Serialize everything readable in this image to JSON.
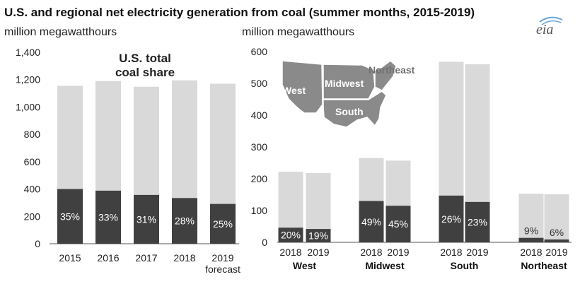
{
  "title": "U.S. and regional net electricity generation from coal (summer months, 2015-2019)",
  "logo_text": "eia",
  "colors": {
    "total": "#d9d9d9",
    "coal": "#404040",
    "map": "#8a8a8a",
    "map_edge": "#ffffff"
  },
  "map_labels": [
    "West",
    "Midwest",
    "South",
    "Northeast"
  ],
  "chart_data": [
    {
      "type": "bar",
      "ylabel": "million megawatthours",
      "ylim": [
        0,
        1400
      ],
      "yticks": [
        "0",
        "200",
        "400",
        "600",
        "800",
        "1,000",
        "1,200",
        "1,400"
      ],
      "ytick_values": [
        0,
        200,
        400,
        600,
        800,
        1000,
        1200,
        1400
      ],
      "annotation": [
        "U.S. total",
        "coal share"
      ],
      "categories": [
        "2015",
        "2016",
        "2017",
        "2018",
        "2019"
      ],
      "category_sublabels": [
        "",
        "",
        "",
        "",
        "forecast"
      ],
      "series": [
        {
          "values": [
            1155,
            1190,
            1148,
            1195,
            1170
          ]
        },
        {
          "values": [
            400,
            388,
            357,
            334,
            291
          ]
        }
      ],
      "bar_labels": [
        "35%",
        "33%",
        "31%",
        "28%",
        "25%"
      ]
    },
    {
      "type": "bar",
      "ylabel": "million megawatthours",
      "ylim": [
        0,
        600
      ],
      "yticks": [
        "0",
        "100",
        "200",
        "300",
        "400",
        "500",
        "600"
      ],
      "ytick_values": [
        0,
        100,
        200,
        300,
        400,
        500,
        600
      ],
      "groups": [
        {
          "name": "West",
          "categories": [
            "2018",
            "2019"
          ],
          "totals": [
            222,
            218
          ],
          "coal": [
            46,
            42
          ],
          "bar_labels": [
            "20%",
            "19%"
          ]
        },
        {
          "name": "Midwest",
          "categories": [
            "2018",
            "2019"
          ],
          "totals": [
            265,
            257
          ],
          "coal": [
            130,
            115
          ],
          "bar_labels": [
            "49%",
            "45%"
          ]
        },
        {
          "name": "South",
          "categories": [
            "2018",
            "2019"
          ],
          "totals": [
            568,
            560
          ],
          "coal": [
            147,
            127
          ],
          "bar_labels": [
            "26%",
            "23%"
          ]
        },
        {
          "name": "Northeast",
          "categories": [
            "2018",
            "2019"
          ],
          "totals": [
            153,
            151
          ],
          "coal": [
            14,
            9
          ],
          "bar_labels": [
            "9%",
            "6%"
          ]
        }
      ]
    }
  ]
}
